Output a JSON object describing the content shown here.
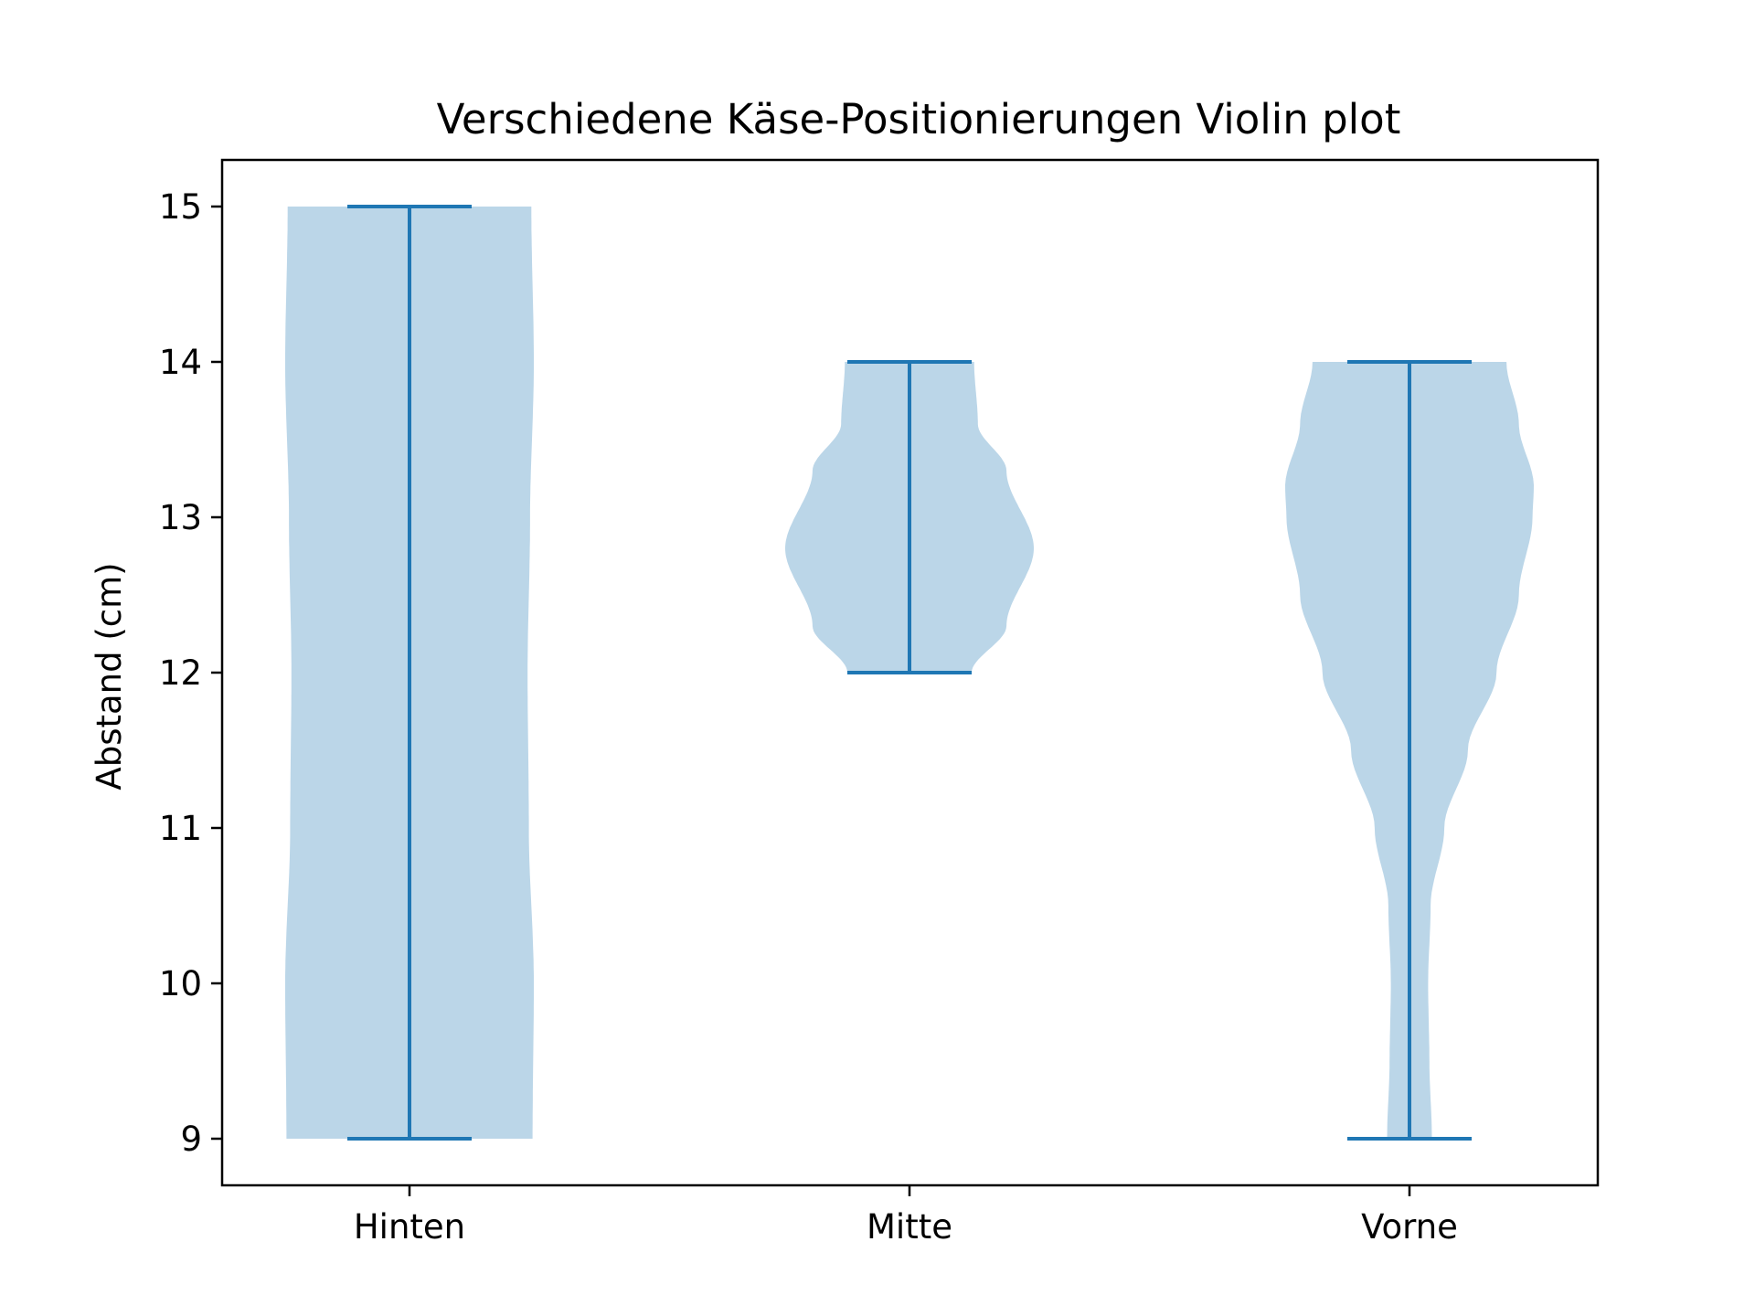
{
  "chart_data": {
    "type": "violin",
    "title": "Verschiedene Käse-Positionierungen Violin plot",
    "xlabel": "",
    "ylabel": "Abstand (cm)",
    "categories": [
      "Hinten",
      "Mitte",
      "Vorne"
    ],
    "ylim": [
      8.7,
      15.3
    ],
    "yticks": [
      9,
      10,
      11,
      12,
      13,
      14,
      15
    ],
    "grid": false,
    "legend": "none",
    "series": [
      {
        "category": "Hinten",
        "min": 9,
        "max": 15,
        "density_profile": [
          [
            9.0,
            0.99
          ],
          [
            10.0,
            1.0
          ],
          [
            11.0,
            0.96
          ],
          [
            12.0,
            0.95
          ],
          [
            13.0,
            0.97
          ],
          [
            14.0,
            1.0
          ],
          [
            15.0,
            0.98
          ]
        ]
      },
      {
        "category": "Mitte",
        "min": 12,
        "max": 14,
        "density_profile": [
          [
            12.0,
            0.5
          ],
          [
            12.3,
            0.78
          ],
          [
            12.8,
            1.0
          ],
          [
            13.3,
            0.78
          ],
          [
            13.6,
            0.55
          ],
          [
            14.0,
            0.52
          ]
        ]
      },
      {
        "category": "Vorne",
        "min": 9,
        "max": 14,
        "density_profile": [
          [
            9.0,
            0.18
          ],
          [
            9.5,
            0.16
          ],
          [
            10.0,
            0.15
          ],
          [
            10.5,
            0.17
          ],
          [
            11.0,
            0.28
          ],
          [
            11.5,
            0.47
          ],
          [
            12.0,
            0.7
          ],
          [
            12.5,
            0.88
          ],
          [
            13.0,
            0.99
          ],
          [
            13.2,
            1.0
          ],
          [
            13.6,
            0.88
          ],
          [
            14.0,
            0.78
          ]
        ]
      }
    ],
    "colors": {
      "body_fill": "#1f77b4",
      "body_opacity": 0.3,
      "line": "#1f77b4"
    }
  }
}
